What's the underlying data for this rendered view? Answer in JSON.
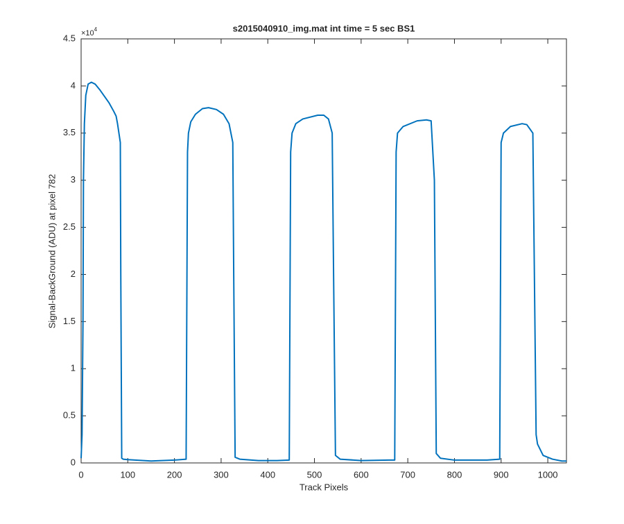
{
  "chart_data": {
    "type": "line",
    "title": "s2015040910_img.mat int time = 5 sec   BS1",
    "x_label": "Track Pixels",
    "y_label": "Signal-BackGround (ADU) at pixel 782",
    "y_multiplier_base": "×10",
    "y_multiplier_exponent": "4",
    "x": [
      0,
      2,
      4,
      5,
      7,
      10,
      15,
      22,
      30,
      40,
      50,
      60,
      70,
      75,
      78,
      84,
      85,
      87,
      90,
      100,
      150,
      200,
      225,
      228,
      230,
      235,
      245,
      260,
      273,
      290,
      305,
      317,
      325,
      327,
      330,
      340,
      380,
      420,
      446,
      449,
      452,
      460,
      475,
      507,
      520,
      530,
      538,
      541,
      545,
      555,
      600,
      660,
      672,
      675,
      678,
      690,
      720,
      740,
      750,
      757,
      761,
      770,
      800,
      870,
      897,
      900,
      905,
      920,
      945,
      955,
      968,
      975,
      978,
      990,
      1010,
      1030,
      1040
    ],
    "series": [
      {
        "color": "#0072bd",
        "values": [
          500,
          3000,
          15000,
          30000,
          36000,
          39000,
          40200,
          40400,
          40200,
          39600,
          38900,
          38200,
          37300,
          36800,
          36000,
          34000,
          20000,
          500,
          400,
          350,
          200,
          300,
          400,
          33000,
          35000,
          36200,
          37000,
          37600,
          37700,
          37500,
          37000,
          36000,
          34000,
          20000,
          600,
          400,
          250,
          250,
          300,
          33000,
          35000,
          36000,
          36500,
          36900,
          36900,
          36500,
          35000,
          20000,
          800,
          400,
          250,
          300,
          300,
          33000,
          35000,
          35700,
          36300,
          36400,
          36300,
          30000,
          1000,
          500,
          300,
          300,
          400,
          34000,
          35000,
          35700,
          36000,
          35900,
          35000,
          3000,
          2000,
          800,
          400,
          200,
          200
        ]
      }
    ],
    "xlim": [
      0,
      1040
    ],
    "xticks": [
      0,
      100,
      200,
      300,
      400,
      500,
      600,
      700,
      800,
      900,
      1000
    ],
    "ylim": [
      0,
      45000
    ],
    "yticks": [
      {
        "value": 0,
        "label": "0"
      },
      {
        "value": 5000,
        "label": "0.5"
      },
      {
        "value": 10000,
        "label": "1"
      },
      {
        "value": 15000,
        "label": "1.5"
      },
      {
        "value": 20000,
        "label": "2"
      },
      {
        "value": 25000,
        "label": "2.5"
      },
      {
        "value": 30000,
        "label": "3"
      },
      {
        "value": 35000,
        "label": "3.5"
      },
      {
        "value": 40000,
        "label": "4"
      },
      {
        "value": 45000,
        "label": "4.5"
      }
    ],
    "grid": false
  }
}
